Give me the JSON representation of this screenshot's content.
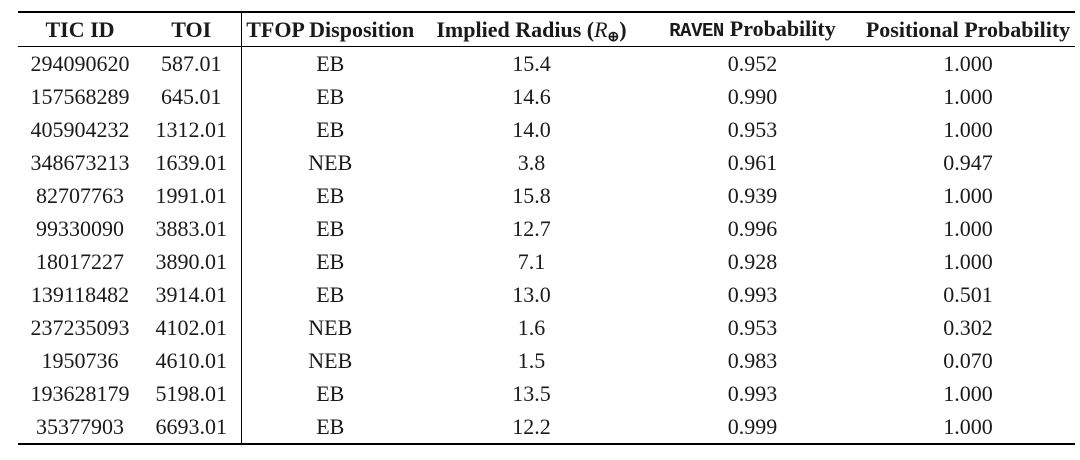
{
  "page": {
    "background_color": "#ffffff",
    "text_color": "#1a1a1a",
    "rule_color": "#000000"
  },
  "table": {
    "column_keys": [
      "tic_id",
      "toi",
      "tfop_disposition",
      "implied_radius",
      "raven_probability",
      "positional_probability"
    ],
    "headers": {
      "tic_id": "TIC ID",
      "toi": "TOI",
      "tfop_disposition": "TFOP Disposition",
      "implied_radius_prefix": "Implied Radius (",
      "implied_radius_symbol": "R",
      "implied_radius_subscript": "⊕",
      "implied_radius_suffix": ")",
      "raven_code": "RAVEN",
      "raven_rest": "Probability",
      "positional_probability": "Positional Probability"
    },
    "rows": [
      {
        "tic_id": "294090620",
        "toi": "587.01",
        "tfop_disposition": "EB",
        "implied_radius": "15.4",
        "raven_probability": "0.952",
        "positional_probability": "1.000"
      },
      {
        "tic_id": "157568289",
        "toi": "645.01",
        "tfop_disposition": "EB",
        "implied_radius": "14.6",
        "raven_probability": "0.990",
        "positional_probability": "1.000"
      },
      {
        "tic_id": "405904232",
        "toi": "1312.01",
        "tfop_disposition": "EB",
        "implied_radius": "14.0",
        "raven_probability": "0.953",
        "positional_probability": "1.000"
      },
      {
        "tic_id": "348673213",
        "toi": "1639.01",
        "tfop_disposition": "NEB",
        "implied_radius": "3.8",
        "raven_probability": "0.961",
        "positional_probability": "0.947"
      },
      {
        "tic_id": "82707763",
        "toi": "1991.01",
        "tfop_disposition": "EB",
        "implied_radius": "15.8",
        "raven_probability": "0.939",
        "positional_probability": "1.000"
      },
      {
        "tic_id": "99330090",
        "toi": "3883.01",
        "tfop_disposition": "EB",
        "implied_radius": "12.7",
        "raven_probability": "0.996",
        "positional_probability": "1.000"
      },
      {
        "tic_id": "18017227",
        "toi": "3890.01",
        "tfop_disposition": "EB",
        "implied_radius": "7.1",
        "raven_probability": "0.928",
        "positional_probability": "1.000"
      },
      {
        "tic_id": "139118482",
        "toi": "3914.01",
        "tfop_disposition": "EB",
        "implied_radius": "13.0",
        "raven_probability": "0.993",
        "positional_probability": "0.501"
      },
      {
        "tic_id": "237235093",
        "toi": "4102.01",
        "tfop_disposition": "NEB",
        "implied_radius": "1.6",
        "raven_probability": "0.953",
        "positional_probability": "0.302"
      },
      {
        "tic_id": "1950736",
        "toi": "4610.01",
        "tfop_disposition": "NEB",
        "implied_radius": "1.5",
        "raven_probability": "0.983",
        "positional_probability": "0.070"
      },
      {
        "tic_id": "193628179",
        "toi": "5198.01",
        "tfop_disposition": "EB",
        "implied_radius": "13.5",
        "raven_probability": "0.993",
        "positional_probability": "1.000"
      },
      {
        "tic_id": "35377903",
        "toi": "6693.01",
        "tfop_disposition": "EB",
        "implied_radius": "12.2",
        "raven_probability": "0.999",
        "positional_probability": "1.000"
      }
    ]
  }
}
